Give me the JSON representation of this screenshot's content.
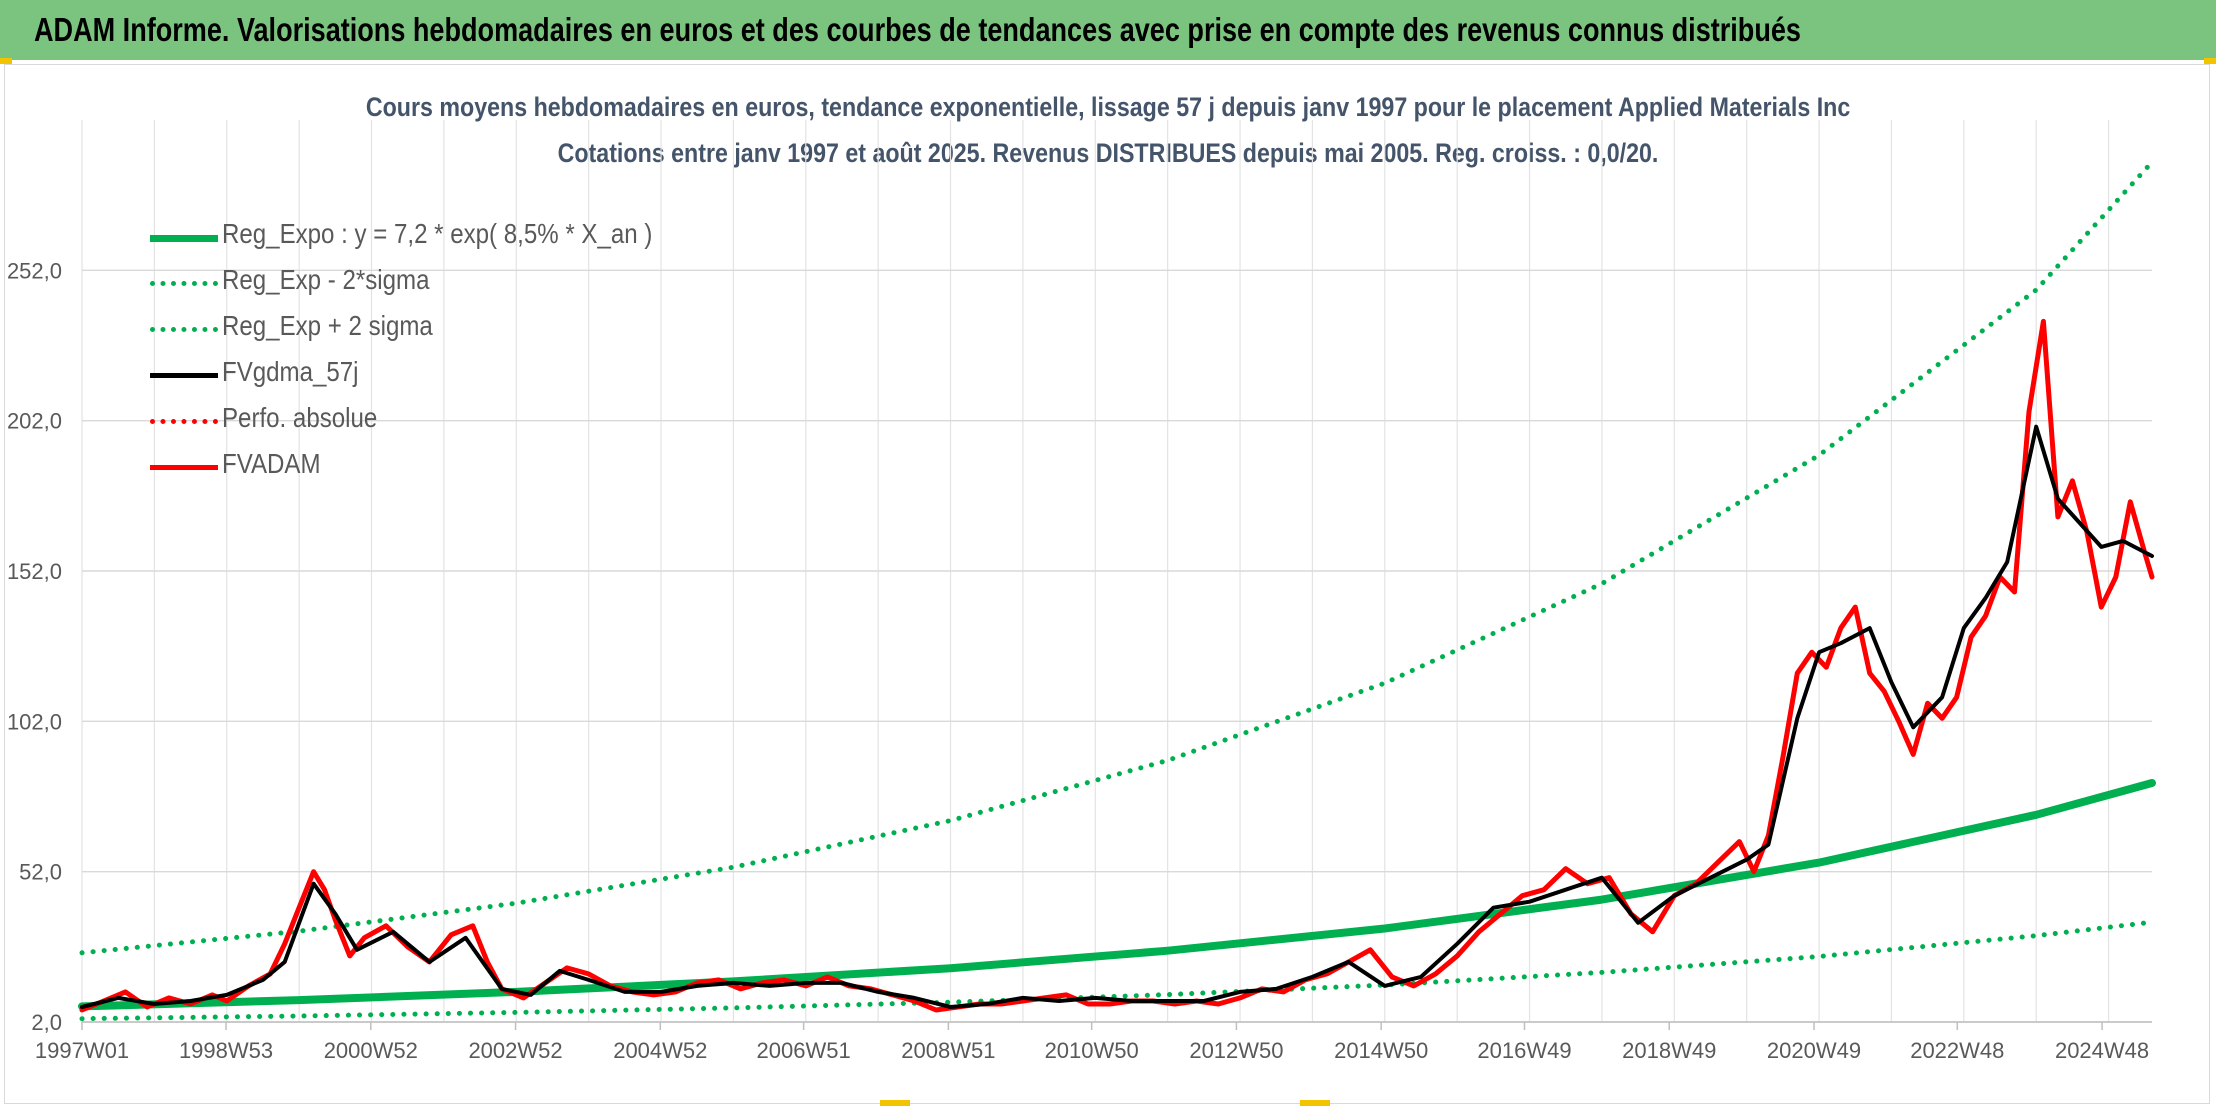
{
  "banner": {
    "title": "ADAM Informe. Valorisations hebdomadaires en euros et des courbes de tendances avec prise en compte des revenus connus distribués"
  },
  "chart_data": {
    "type": "line",
    "title": "Cours moyens hebdomadaires en euros, tendance exponentielle, lissage 57 j depuis janv 1997 pour le placement Applied Materials Inc",
    "subtitle": "Cotations entre janv 1997 et août 2025. Revenus DISTRIBUES depuis mai 2005. Reg. croiss. : 0,0/20.",
    "xlabel": "",
    "ylabel": "",
    "x_range": [
      1997.0,
      2025.6
    ],
    "ylim": [
      2.0,
      302.0
    ],
    "y_ticks": [
      "2,0",
      "52,0",
      "102,0",
      "152,0",
      "202,0",
      "252,0"
    ],
    "x_ticks": [
      {
        "label": "1997W01",
        "t": 1997.0
      },
      {
        "label": "1998W53",
        "t": 1998.99
      },
      {
        "label": "2000W52",
        "t": 2000.99
      },
      {
        "label": "2002W52",
        "t": 2002.99
      },
      {
        "label": "2004W52",
        "t": 2004.99
      },
      {
        "label": "2006W51",
        "t": 2006.97
      },
      {
        "label": "2008W51",
        "t": 2008.97
      },
      {
        "label": "2010W50",
        "t": 2010.95
      },
      {
        "label": "2012W50",
        "t": 2012.95
      },
      {
        "label": "2014W50",
        "t": 2014.95
      },
      {
        "label": "2016W49",
        "t": 2016.93
      },
      {
        "label": "2018W49",
        "t": 2018.93
      },
      {
        "label": "2020W49",
        "t": 2020.93
      },
      {
        "label": "2022W48",
        "t": 2022.91
      },
      {
        "label": "2024W48",
        "t": 2024.91
      }
    ],
    "grid": true,
    "legend_position": "top-left",
    "series": [
      {
        "name": "Reg_Expo : y = 7,2 * exp( 8,5% *  X_an )",
        "color": "#00b050",
        "style": "solid",
        "width": 8,
        "x": [
          1997,
          2000,
          2003,
          2006,
          2009,
          2012,
          2015,
          2018,
          2021,
          2024,
          2025.6
        ],
        "y": [
          7.2,
          9.3,
          12.0,
          15.5,
          19.9,
          25.7,
          33.1,
          42.7,
          55.0,
          70.9,
          81.5
        ]
      },
      {
        "name": "Reg_Exp - 2*sigma",
        "color": "#00b050",
        "style": "dotted",
        "width": 5,
        "x": [
          1997,
          2000,
          2003,
          2006,
          2009,
          2012,
          2015,
          2018,
          2021,
          2024,
          2025.6
        ],
        "y": [
          3.1,
          4.0,
          5.2,
          6.7,
          8.6,
          11.1,
          14.3,
          18.5,
          23.8,
          30.7,
          35.2
        ]
      },
      {
        "name": "Reg_Exp + 2 sigma",
        "color": "#00b050",
        "style": "dotted",
        "width": 5,
        "x": [
          1997,
          2000,
          2003,
          2006,
          2009,
          2012,
          2015,
          2018,
          2021,
          2024,
          2025.6
        ],
        "y": [
          25.0,
          32.2,
          41.5,
          53.5,
          69.0,
          89.0,
          114.7,
          147.8,
          190.5,
          245.5,
          288.0
        ]
      },
      {
        "name": "FVgdma_57j",
        "color": "#000000",
        "style": "solid",
        "width": 4,
        "x": [
          1997.0,
          1997.5,
          1998.0,
          1998.5,
          1999.0,
          1999.5,
          1999.8,
          2000.2,
          2000.5,
          2000.8,
          2001.3,
          2001.8,
          2002.3,
          2002.8,
          2003.2,
          2003.6,
          2004.0,
          2004.5,
          2005.0,
          2005.5,
          2006.0,
          2006.5,
          2007.0,
          2007.5,
          2008.0,
          2008.5,
          2009.0,
          2009.5,
          2010.0,
          2010.5,
          2011.0,
          2011.5,
          2012.0,
          2012.5,
          2013.0,
          2013.5,
          2014.0,
          2014.5,
          2015.0,
          2015.5,
          2016.0,
          2016.5,
          2017.0,
          2017.5,
          2018.0,
          2018.5,
          2019.0,
          2019.5,
          2020.0,
          2020.3,
          2020.7,
          2021.0,
          2021.3,
          2021.7,
          2022.0,
          2022.3,
          2022.7,
          2023.0,
          2023.3,
          2023.6,
          2024.0,
          2024.3,
          2024.6,
          2024.9,
          2025.2,
          2025.6
        ],
        "y": [
          7,
          10,
          8,
          9,
          11,
          16,
          22,
          48,
          38,
          26,
          32,
          22,
          30,
          13,
          11,
          19,
          16,
          12,
          12,
          14,
          15,
          14,
          15,
          15,
          12,
          10,
          7,
          8,
          10,
          9,
          10,
          9,
          9,
          9,
          12,
          13,
          17,
          22,
          14,
          17,
          28,
          40,
          42,
          46,
          50,
          35,
          44,
          50,
          56,
          61,
          103,
          125,
          128,
          133,
          115,
          100,
          110,
          133,
          143,
          155,
          200,
          176,
          168,
          160,
          162,
          157
        ]
      },
      {
        "name": "Perfo. absolue",
        "color": "#ff0000",
        "style": "dotted",
        "width": 4,
        "x": [],
        "y": []
      },
      {
        "name": "FVADAM",
        "color": "#ff0000",
        "style": "solid",
        "width": 5,
        "x": [
          1997.0,
          1997.3,
          1997.6,
          1997.9,
          1998.2,
          1998.5,
          1998.8,
          1999.0,
          1999.3,
          1999.6,
          1999.8,
          2000.0,
          2000.2,
          2000.35,
          2000.5,
          2000.7,
          2000.9,
          2001.2,
          2001.5,
          2001.8,
          2002.1,
          2002.4,
          2002.6,
          2002.8,
          2003.1,
          2003.4,
          2003.7,
          2004.0,
          2004.3,
          2004.6,
          2004.9,
          2005.2,
          2005.5,
          2005.8,
          2006.1,
          2006.4,
          2006.7,
          2007.0,
          2007.3,
          2007.6,
          2007.9,
          2008.2,
          2008.5,
          2008.8,
          2009.1,
          2009.4,
          2009.7,
          2010.0,
          2010.3,
          2010.6,
          2010.9,
          2011.2,
          2011.5,
          2011.8,
          2012.1,
          2012.4,
          2012.7,
          2013.0,
          2013.3,
          2013.6,
          2013.9,
          2014.2,
          2014.5,
          2014.8,
          2015.1,
          2015.4,
          2015.7,
          2016.0,
          2016.3,
          2016.6,
          2016.9,
          2017.2,
          2017.5,
          2017.8,
          2018.1,
          2018.4,
          2018.7,
          2019.0,
          2019.3,
          2019.6,
          2019.9,
          2020.1,
          2020.3,
          2020.5,
          2020.7,
          2020.9,
          2021.1,
          2021.3,
          2021.5,
          2021.7,
          2021.9,
          2022.1,
          2022.3,
          2022.5,
          2022.7,
          2022.9,
          2023.1,
          2023.3,
          2023.5,
          2023.7,
          2023.9,
          2024.1,
          2024.3,
          2024.5,
          2024.7,
          2024.9,
          2025.1,
          2025.3,
          2025.5,
          2025.6
        ],
        "y": [
          6,
          9,
          12,
          7,
          10,
          8,
          11,
          9,
          14,
          18,
          28,
          40,
          52,
          46,
          36,
          24,
          30,
          34,
          27,
          22,
          31,
          34,
          22,
          13,
          10,
          15,
          20,
          18,
          14,
          12,
          11,
          12,
          15,
          16,
          13,
          15,
          16,
          14,
          17,
          14,
          13,
          11,
          9,
          6,
          7,
          8,
          8,
          9,
          10,
          11,
          8,
          8,
          9,
          9,
          8,
          9,
          8,
          10,
          13,
          12,
          16,
          18,
          22,
          26,
          17,
          14,
          18,
          24,
          32,
          38,
          44,
          46,
          53,
          48,
          50,
          38,
          32,
          44,
          48,
          55,
          62,
          52,
          64,
          90,
          118,
          125,
          120,
          133,
          140,
          118,
          112,
          102,
          91,
          108,
          103,
          110,
          130,
          137,
          150,
          145,
          205,
          235,
          170,
          182,
          165,
          140,
          150,
          175,
          158,
          150
        ]
      }
    ]
  }
}
